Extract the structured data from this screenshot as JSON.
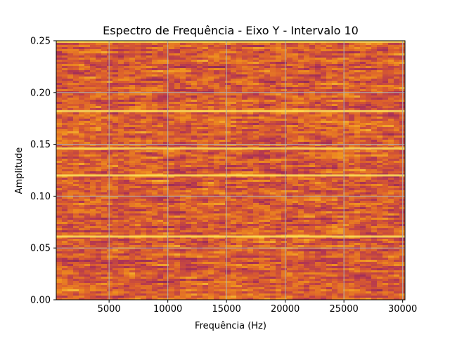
{
  "chart_data": {
    "type": "heatmap",
    "title": "Espectro de Frequência - Eixo Y - Intervalo 10",
    "xlabel": "Frequência (Hz)",
    "ylabel": "Amplitude",
    "xlim": [
      500,
      30200
    ],
    "ylim": [
      0,
      0.25
    ],
    "xticks": [
      5000,
      10000,
      15000,
      20000,
      25000,
      30000
    ],
    "xtick_labels": [
      "5000",
      "10000",
      "15000",
      "20000",
      "25000",
      "30000"
    ],
    "yticks": [
      0.0,
      0.05,
      0.1,
      0.15,
      0.2,
      0.25
    ],
    "ytick_labels": [
      "0.00",
      "0.05",
      "0.10",
      "0.15",
      "0.20",
      "0.25"
    ],
    "grid": true,
    "colormap": "inferno-like (purple → orange → yellow)",
    "bright_bands_amplitude": [
      0.061,
      0.12,
      0.146,
      0.182,
      0.249
    ],
    "colors": {
      "low": "#8a2f5c",
      "mid": "#e8751a",
      "high": "#fde35a",
      "grid": "#b0b0b0"
    }
  }
}
